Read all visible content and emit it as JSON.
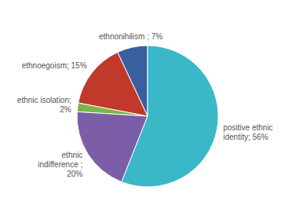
{
  "chart_data": {
    "type": "pie",
    "categories": [
      "ethnonihilism ; 7%",
      "ethnoegoism; 15%",
      "ethnic isolation;\n2%",
      "ethnic\nindifference ;\n20%",
      "positive ethnic\nidentity; 56%"
    ],
    "values": [
      7,
      15,
      2,
      20,
      56
    ],
    "colors": [
      "#3a5fa0",
      "#c0392b",
      "#7ab648",
      "#7b5ea7",
      "#3ab8c8"
    ]
  }
}
